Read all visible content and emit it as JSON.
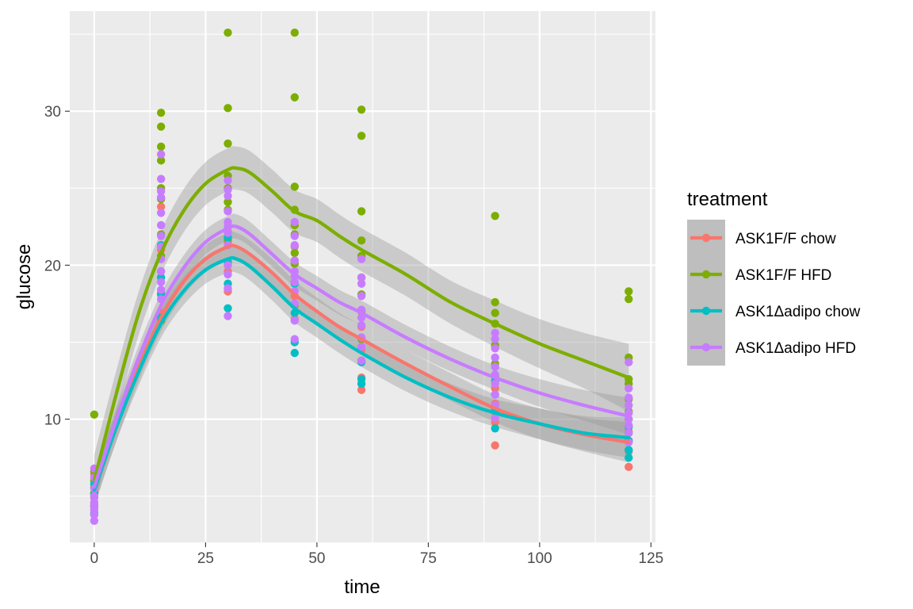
{
  "chart_data": {
    "type": "scatter",
    "xlabel": "time",
    "ylabel": "glucose",
    "xlim": [
      -5.5,
      126
    ],
    "ylim": [
      2,
      36.5
    ],
    "x_ticks": [
      0,
      25,
      50,
      75,
      100,
      125
    ],
    "x_tick_labels": [
      "0",
      "25",
      "50",
      "75",
      "100",
      "125"
    ],
    "y_ticks": [
      10,
      20,
      30
    ],
    "y_tick_labels": [
      "10",
      "20",
      "30"
    ],
    "grid": true,
    "legend_position": "right",
    "legend_title": "treatment",
    "smoother": "loess with confidence band",
    "series": [
      {
        "name": "ASK1F/F chow",
        "color": "#F8766D",
        "points": [
          [
            0,
            3.8
          ],
          [
            0,
            4.3
          ],
          [
            0,
            4.9
          ],
          [
            0,
            5.6
          ],
          [
            0,
            6.4
          ],
          [
            15,
            16.9
          ],
          [
            15,
            18.2
          ],
          [
            15,
            21.0
          ],
          [
            15,
            23.8
          ],
          [
            30,
            18.3
          ],
          [
            30,
            19.6
          ],
          [
            30,
            21.5
          ],
          [
            30,
            22.2
          ],
          [
            45,
            16.5
          ],
          [
            45,
            18.0
          ],
          [
            45,
            20.3
          ],
          [
            45,
            21.2
          ],
          [
            60,
            11.9
          ],
          [
            60,
            12.7
          ],
          [
            60,
            14.5
          ],
          [
            60,
            16.0
          ],
          [
            90,
            8.3
          ],
          [
            90,
            9.8
          ],
          [
            90,
            11.0
          ],
          [
            90,
            12.0
          ],
          [
            120,
            6.9
          ],
          [
            120,
            7.9
          ],
          [
            120,
            8.6
          ],
          [
            120,
            9.2
          ]
        ],
        "line": [
          [
            0,
            5.4
          ],
          [
            5,
            9.6
          ],
          [
            10,
            13.4
          ],
          [
            15,
            16.6
          ],
          [
            20,
            18.9
          ],
          [
            25,
            20.4
          ],
          [
            30,
            21.2
          ],
          [
            32,
            21.2
          ],
          [
            35,
            20.7
          ],
          [
            40,
            19.5
          ],
          [
            45,
            18.1
          ],
          [
            50,
            17.0
          ],
          [
            55,
            16.0
          ],
          [
            60,
            15.2
          ],
          [
            70,
            13.6
          ],
          [
            80,
            12.1
          ],
          [
            90,
            10.7
          ],
          [
            100,
            9.7
          ],
          [
            110,
            9.0
          ],
          [
            120,
            8.5
          ]
        ],
        "band_halfwidth": [
          1.1,
          1.0,
          0.9,
          0.9,
          0.9,
          0.9,
          0.9,
          0.9,
          0.9,
          0.9,
          0.9,
          0.9,
          0.9,
          0.9,
          0.9,
          0.9,
          0.9,
          1.0,
          1.1,
          1.3
        ]
      },
      {
        "name": "ASK1F/F HFD",
        "color": "#7CAE00",
        "points": [
          [
            0,
            5.2
          ],
          [
            0,
            6.0
          ],
          [
            0,
            6.6
          ],
          [
            0,
            10.3
          ],
          [
            15,
            16.4
          ],
          [
            15,
            19.6
          ],
          [
            15,
            20.6
          ],
          [
            15,
            22.0
          ],
          [
            15,
            24.3
          ],
          [
            15,
            25.0
          ],
          [
            15,
            26.8
          ],
          [
            15,
            27.7
          ],
          [
            15,
            29.0
          ],
          [
            15,
            29.9
          ],
          [
            30,
            20.0
          ],
          [
            30,
            21.7
          ],
          [
            30,
            23.6
          ],
          [
            30,
            24.1
          ],
          [
            30,
            25.0
          ],
          [
            30,
            25.8
          ],
          [
            30,
            27.9
          ],
          [
            30,
            30.2
          ],
          [
            30,
            35.1
          ],
          [
            45,
            17.4
          ],
          [
            45,
            20.1
          ],
          [
            45,
            20.8
          ],
          [
            45,
            22.0
          ],
          [
            45,
            22.6
          ],
          [
            45,
            23.6
          ],
          [
            45,
            25.1
          ],
          [
            45,
            30.9
          ],
          [
            45,
            35.1
          ],
          [
            60,
            13.8
          ],
          [
            60,
            15.2
          ],
          [
            60,
            17.0
          ],
          [
            60,
            18.1
          ],
          [
            60,
            19.2
          ],
          [
            60,
            20.6
          ],
          [
            60,
            21.6
          ],
          [
            60,
            23.5
          ],
          [
            60,
            28.4
          ],
          [
            60,
            30.1
          ],
          [
            90,
            10.5
          ],
          [
            90,
            12.8
          ],
          [
            90,
            13.6
          ],
          [
            90,
            14.8
          ],
          [
            90,
            16.2
          ],
          [
            90,
            16.9
          ],
          [
            90,
            17.6
          ],
          [
            90,
            23.2
          ],
          [
            120,
            9.1
          ],
          [
            120,
            10.0
          ],
          [
            120,
            10.5
          ],
          [
            120,
            11.3
          ],
          [
            120,
            12.3
          ],
          [
            120,
            12.6
          ],
          [
            120,
            14.0
          ],
          [
            120,
            17.8
          ],
          [
            120,
            18.3
          ]
        ],
        "line": [
          [
            0,
            6.0
          ],
          [
            5,
            11.7
          ],
          [
            10,
            16.9
          ],
          [
            15,
            20.8
          ],
          [
            20,
            23.5
          ],
          [
            25,
            25.3
          ],
          [
            30,
            26.2
          ],
          [
            32,
            26.3
          ],
          [
            35,
            26.0
          ],
          [
            40,
            24.8
          ],
          [
            45,
            23.5
          ],
          [
            50,
            22.9
          ],
          [
            55,
            21.9
          ],
          [
            60,
            21.0
          ],
          [
            70,
            19.4
          ],
          [
            80,
            17.6
          ],
          [
            90,
            16.2
          ],
          [
            100,
            14.9
          ],
          [
            110,
            13.8
          ],
          [
            120,
            12.7
          ]
        ],
        "band_halfwidth": [
          1.7,
          1.5,
          1.4,
          1.4,
          1.4,
          1.4,
          1.4,
          1.4,
          1.4,
          1.4,
          1.4,
          1.4,
          1.4,
          1.4,
          1.4,
          1.4,
          1.5,
          1.6,
          1.8,
          2.2
        ]
      },
      {
        "name": "ASK1Δadipo chow",
        "color": "#00BFC4",
        "points": [
          [
            0,
            3.9
          ],
          [
            0,
            4.4
          ],
          [
            0,
            5.1
          ],
          [
            0,
            5.8
          ],
          [
            15,
            16.6
          ],
          [
            15,
            18.1
          ],
          [
            15,
            19.2
          ],
          [
            15,
            21.3
          ],
          [
            30,
            17.2
          ],
          [
            30,
            18.8
          ],
          [
            30,
            20.2
          ],
          [
            30,
            21.8
          ],
          [
            45,
            14.3
          ],
          [
            45,
            15.0
          ],
          [
            45,
            16.9
          ],
          [
            45,
            18.8
          ],
          [
            60,
            12.3
          ],
          [
            60,
            12.6
          ],
          [
            60,
            13.7
          ],
          [
            60,
            15.3
          ],
          [
            90,
            9.4
          ],
          [
            90,
            10.6
          ],
          [
            90,
            11.6
          ],
          [
            90,
            12.5
          ],
          [
            120,
            7.5
          ],
          [
            120,
            8.0
          ],
          [
            120,
            8.6
          ],
          [
            120,
            9.5
          ]
        ],
        "line": [
          [
            0,
            5.4
          ],
          [
            5,
            9.5
          ],
          [
            10,
            13.1
          ],
          [
            15,
            16.2
          ],
          [
            20,
            18.3
          ],
          [
            25,
            19.7
          ],
          [
            30,
            20.4
          ],
          [
            32,
            20.4
          ],
          [
            35,
            19.9
          ],
          [
            40,
            18.6
          ],
          [
            45,
            17.2
          ],
          [
            50,
            16.2
          ],
          [
            55,
            15.2
          ],
          [
            60,
            14.3
          ],
          [
            70,
            12.7
          ],
          [
            80,
            11.4
          ],
          [
            90,
            10.4
          ],
          [
            100,
            9.7
          ],
          [
            110,
            9.1
          ],
          [
            120,
            8.8
          ]
        ],
        "band_halfwidth": [
          1.0,
          0.9,
          0.9,
          0.9,
          0.9,
          0.9,
          0.9,
          0.9,
          0.9,
          0.9,
          0.9,
          0.9,
          0.9,
          0.9,
          0.9,
          0.9,
          0.9,
          1.0,
          1.1,
          1.3
        ]
      },
      {
        "name": "ASK1Δadipo HFD",
        "color": "#C77CFF",
        "points": [
          [
            0,
            3.4
          ],
          [
            0,
            3.8
          ],
          [
            0,
            4.1
          ],
          [
            0,
            4.4
          ],
          [
            0,
            4.6
          ],
          [
            0,
            5.0
          ],
          [
            0,
            5.5
          ],
          [
            0,
            6.2
          ],
          [
            0,
            6.8
          ],
          [
            15,
            17.8
          ],
          [
            15,
            18.4
          ],
          [
            15,
            18.9
          ],
          [
            15,
            19.6
          ],
          [
            15,
            20.4
          ],
          [
            15,
            21.2
          ],
          [
            15,
            21.9
          ],
          [
            15,
            22.6
          ],
          [
            15,
            23.4
          ],
          [
            15,
            24.4
          ],
          [
            15,
            24.8
          ],
          [
            15,
            25.6
          ],
          [
            15,
            27.2
          ],
          [
            30,
            16.7
          ],
          [
            30,
            18.5
          ],
          [
            30,
            19.4
          ],
          [
            30,
            20.0
          ],
          [
            30,
            21.3
          ],
          [
            30,
            22.1
          ],
          [
            30,
            22.5
          ],
          [
            30,
            22.8
          ],
          [
            30,
            23.5
          ],
          [
            30,
            24.5
          ],
          [
            30,
            24.9
          ],
          [
            30,
            25.5
          ],
          [
            45,
            15.2
          ],
          [
            45,
            16.4
          ],
          [
            45,
            17.5
          ],
          [
            45,
            18.3
          ],
          [
            45,
            18.9
          ],
          [
            45,
            19.3
          ],
          [
            45,
            19.6
          ],
          [
            45,
            20.3
          ],
          [
            45,
            21.3
          ],
          [
            45,
            21.9
          ],
          [
            45,
            22.8
          ],
          [
            60,
            13.8
          ],
          [
            60,
            14.7
          ],
          [
            60,
            15.3
          ],
          [
            60,
            16.1
          ],
          [
            60,
            16.6
          ],
          [
            60,
            17.1
          ],
          [
            60,
            18.0
          ],
          [
            60,
            18.8
          ],
          [
            60,
            19.2
          ],
          [
            60,
            20.4
          ],
          [
            90,
            10.1
          ],
          [
            90,
            10.9
          ],
          [
            90,
            11.6
          ],
          [
            90,
            12.3
          ],
          [
            90,
            12.9
          ],
          [
            90,
            13.4
          ],
          [
            90,
            14.0
          ],
          [
            90,
            14.6
          ],
          [
            90,
            15.2
          ],
          [
            90,
            15.6
          ],
          [
            120,
            8.5
          ],
          [
            120,
            9.1
          ],
          [
            120,
            9.6
          ],
          [
            120,
            10.0
          ],
          [
            120,
            10.4
          ],
          [
            120,
            10.9
          ],
          [
            120,
            11.4
          ],
          [
            120,
            12.0
          ],
          [
            120,
            13.7
          ]
        ],
        "line": [
          [
            0,
            5.6
          ],
          [
            5,
            10.0
          ],
          [
            10,
            14.0
          ],
          [
            15,
            17.4
          ],
          [
            20,
            19.8
          ],
          [
            25,
            21.5
          ],
          [
            30,
            22.4
          ],
          [
            32,
            22.5
          ],
          [
            35,
            22.0
          ],
          [
            40,
            20.7
          ],
          [
            45,
            19.4
          ],
          [
            50,
            18.5
          ],
          [
            55,
            17.6
          ],
          [
            60,
            16.9
          ],
          [
            70,
            15.3
          ],
          [
            80,
            13.9
          ],
          [
            90,
            12.7
          ],
          [
            100,
            11.7
          ],
          [
            110,
            10.9
          ],
          [
            120,
            10.2
          ]
        ],
        "band_halfwidth": [
          0.9,
          0.8,
          0.8,
          0.8,
          0.8,
          0.8,
          0.8,
          0.8,
          0.8,
          0.8,
          0.8,
          0.8,
          0.8,
          0.8,
          0.8,
          0.8,
          0.8,
          0.9,
          1.0,
          1.2
        ]
      }
    ]
  }
}
